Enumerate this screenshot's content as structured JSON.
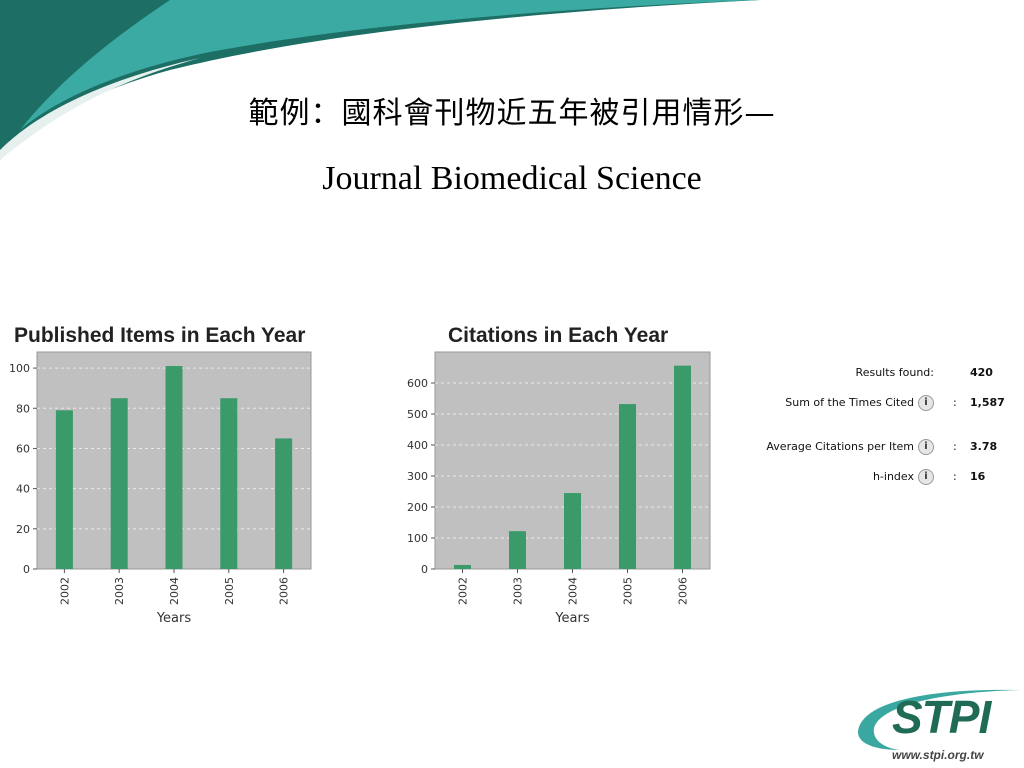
{
  "slide": {
    "title_line1": "範例：國科會刊物近五年被引用情形—",
    "title_line2": "Journal Biomedical Science"
  },
  "chart_data": [
    {
      "type": "bar",
      "title": "Published Items in Each Year",
      "xlabel": "Years",
      "ylabel": "",
      "categories": [
        "2002",
        "2003",
        "2004",
        "2005",
        "2006"
      ],
      "values": [
        79,
        85,
        101,
        85,
        65
      ],
      "ylim": [
        0,
        108
      ],
      "yticks": [
        0,
        20,
        40,
        60,
        80,
        100
      ],
      "grid": true,
      "bar_color": "#3a9a6a",
      "plot_bg": "#c0c0c0"
    },
    {
      "type": "bar",
      "title": "Citations in Each Year",
      "xlabel": "Years",
      "ylabel": "",
      "categories": [
        "2002",
        "2003",
        "2004",
        "2005",
        "2006"
      ],
      "values": [
        13,
        122,
        245,
        532,
        656
      ],
      "ylim": [
        0,
        700
      ],
      "yticks": [
        0,
        100,
        200,
        300,
        400,
        500,
        600
      ],
      "grid": true,
      "bar_color": "#3a9a6a",
      "plot_bg": "#c0c0c0"
    }
  ],
  "stats": {
    "results_found_label": "Results found:",
    "results_found_value": "420",
    "sum_cited_label": "Sum of the Times Cited",
    "sum_cited_value": "1,587",
    "avg_citations_label": "Average Citations per Item",
    "avg_citations_value": "3.78",
    "h_index_label": "h-index",
    "h_index_value": "16",
    "colon": ":",
    "info_glyph": "i"
  },
  "logo": {
    "word": "STPI",
    "url": "www.stpi.org.tw"
  },
  "colors": {
    "teal_dark": "#1f7a6a",
    "teal_light": "#3aa8a0",
    "bar": "#3a9a6a"
  }
}
